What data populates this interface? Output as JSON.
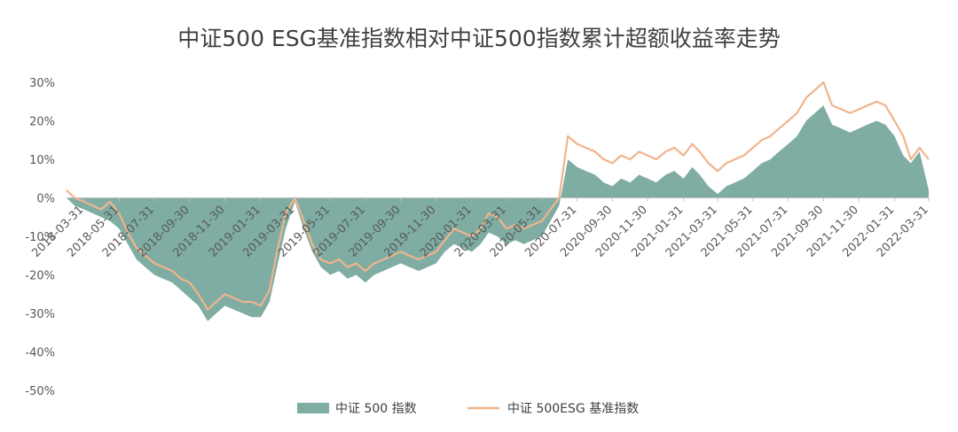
{
  "chart_data": {
    "type": "area",
    "title": "中证500 ESG基准指数相对中证500指数累计超额收益率走势",
    "xlabel": "",
    "ylabel": "",
    "ylim": [
      -50,
      30
    ],
    "y_ticks": [
      "30%",
      "20%",
      "10%",
      "0%",
      "-10%",
      "-20%",
      "-30%",
      "-40%",
      "-50%"
    ],
    "x_ticks": [
      "2018-03-31",
      "2018-05-31",
      "2018-07-31",
      "2018-09-30",
      "2018-11-30",
      "2019-01-31",
      "2019-03-31",
      "2019-05-31",
      "2019-07-31",
      "2019-09-30",
      "2019-11-30",
      "2020-01-31",
      "2020-03-31",
      "2020-05-31",
      "2020-07-31",
      "2020-09-30",
      "2020-11-30",
      "2021-01-31",
      "2021-03-31",
      "2021-05-31",
      "2021-07-31",
      "2021-09-30",
      "2021-11-30",
      "2022-01-31",
      "2022-03-31"
    ],
    "legend_position": "bottom",
    "grid": false,
    "series": [
      {
        "name": "中证 500 指数",
        "kind": "area",
        "color": "#7fada3",
        "x": [
          "2018-03-01",
          "2018-03-15",
          "2018-03-31",
          "2018-04-15",
          "2018-04-30",
          "2018-05-15",
          "2018-05-31",
          "2018-06-15",
          "2018-06-30",
          "2018-07-15",
          "2018-07-31",
          "2018-08-15",
          "2018-08-31",
          "2018-09-15",
          "2018-09-30",
          "2018-10-15",
          "2018-10-31",
          "2018-11-15",
          "2018-11-30",
          "2018-12-15",
          "2018-12-31",
          "2019-01-15",
          "2019-01-31",
          "2019-02-15",
          "2019-02-28",
          "2019-03-15",
          "2019-03-31",
          "2019-04-15",
          "2019-04-30",
          "2019-05-15",
          "2019-05-31",
          "2019-06-15",
          "2019-06-30",
          "2019-07-15",
          "2019-07-31",
          "2019-08-15",
          "2019-08-31",
          "2019-09-15",
          "2019-09-30",
          "2019-10-15",
          "2019-10-31",
          "2019-11-15",
          "2019-11-30",
          "2019-12-15",
          "2019-12-31",
          "2020-01-15",
          "2020-01-31",
          "2020-02-15",
          "2020-02-29",
          "2020-03-15",
          "2020-03-31",
          "2020-04-15",
          "2020-04-30",
          "2020-05-15",
          "2020-05-31",
          "2020-06-15",
          "2020-06-30",
          "2020-07-15",
          "2020-07-31",
          "2020-08-15",
          "2020-08-31",
          "2020-09-15",
          "2020-09-30",
          "2020-10-15",
          "2020-10-31",
          "2020-11-15",
          "2020-11-30",
          "2020-12-15",
          "2020-12-31",
          "2021-01-15",
          "2021-01-31",
          "2021-02-15",
          "2021-02-28",
          "2021-03-15",
          "2021-03-31",
          "2021-04-15",
          "2021-04-30",
          "2021-05-15",
          "2021-05-31",
          "2021-06-15",
          "2021-06-30",
          "2021-07-15",
          "2021-07-31",
          "2021-08-15",
          "2021-08-31",
          "2021-09-15",
          "2021-09-30",
          "2021-10-15",
          "2021-10-31",
          "2021-11-15",
          "2021-11-30",
          "2021-12-15",
          "2021-12-31",
          "2022-01-15",
          "2022-01-31",
          "2022-02-15",
          "2022-02-28",
          "2022-03-15",
          "2022-03-31"
        ],
        "values": [
          0,
          -2,
          -3,
          -4,
          -5,
          -6,
          -8,
          -12,
          -16,
          -18,
          -20,
          -21,
          -22,
          -24,
          -26,
          -28,
          -32,
          -30,
          -28,
          -29,
          -30,
          -31,
          -31,
          -27,
          -18,
          -8,
          -1,
          -8,
          -14,
          -18,
          -20,
          -19,
          -21,
          -20,
          -22,
          -20,
          -19,
          -18,
          -17,
          -18,
          -19,
          -18,
          -17,
          -14,
          -12,
          -13,
          -14,
          -12,
          -9,
          -10,
          -12,
          -11,
          -12,
          -11,
          -10,
          -6,
          -2,
          10,
          8,
          7,
          6,
          4,
          3,
          5,
          4,
          6,
          5,
          4,
          6,
          7,
          5,
          8,
          6,
          3,
          1,
          3,
          4,
          5,
          7,
          9,
          10,
          12,
          14,
          16,
          20,
          22,
          24,
          19,
          18,
          17,
          18,
          19,
          20,
          19,
          16,
          11,
          9,
          12,
          2
        ]
      },
      {
        "name": "中证 500ESG 基准指数",
        "kind": "line",
        "color": "#f0b48c",
        "x": [
          "2018-03-01",
          "2018-03-15",
          "2018-03-31",
          "2018-04-15",
          "2018-04-30",
          "2018-05-15",
          "2018-05-31",
          "2018-06-15",
          "2018-06-30",
          "2018-07-15",
          "2018-07-31",
          "2018-08-15",
          "2018-08-31",
          "2018-09-15",
          "2018-09-30",
          "2018-10-15",
          "2018-10-31",
          "2018-11-15",
          "2018-11-30",
          "2018-12-15",
          "2018-12-31",
          "2019-01-15",
          "2019-01-31",
          "2019-02-15",
          "2019-02-28",
          "2019-03-15",
          "2019-03-31",
          "2019-04-15",
          "2019-04-30",
          "2019-05-15",
          "2019-05-31",
          "2019-06-15",
          "2019-06-30",
          "2019-07-15",
          "2019-07-31",
          "2019-08-15",
          "2019-08-31",
          "2019-09-15",
          "2019-09-30",
          "2019-10-15",
          "2019-10-31",
          "2019-11-15",
          "2019-11-30",
          "2019-12-15",
          "2019-12-31",
          "2020-01-15",
          "2020-01-31",
          "2020-02-15",
          "2020-02-29",
          "2020-03-15",
          "2020-03-31",
          "2020-04-15",
          "2020-04-30",
          "2020-05-15",
          "2020-05-31",
          "2020-06-15",
          "2020-06-30",
          "2020-07-15",
          "2020-07-31",
          "2020-08-15",
          "2020-08-31",
          "2020-09-15",
          "2020-09-30",
          "2020-10-15",
          "2020-10-31",
          "2020-11-15",
          "2020-11-30",
          "2020-12-15",
          "2020-12-31",
          "2021-01-15",
          "2021-01-31",
          "2021-02-15",
          "2021-02-28",
          "2021-03-15",
          "2021-03-31",
          "2021-04-15",
          "2021-04-30",
          "2021-05-15",
          "2021-05-31",
          "2021-06-15",
          "2021-06-30",
          "2021-07-15",
          "2021-07-31",
          "2021-08-15",
          "2021-08-31",
          "2021-09-15",
          "2021-09-30",
          "2021-10-15",
          "2021-10-31",
          "2021-11-15",
          "2021-11-30",
          "2021-12-15",
          "2021-12-31",
          "2022-01-15",
          "2022-01-31",
          "2022-02-15",
          "2022-02-28",
          "2022-03-15",
          "2022-03-31"
        ],
        "values": [
          2,
          0,
          -1,
          -2,
          -3,
          -1,
          -4,
          -9,
          -13,
          -15,
          -17,
          -18,
          -19,
          -21,
          -22,
          -25,
          -29,
          -27,
          -25,
          -26,
          -27,
          -27,
          -28,
          -24,
          -14,
          -4,
          0,
          -6,
          -12,
          -16,
          -17,
          -16,
          -18,
          -17,
          -19,
          -17,
          -16,
          -15,
          -14,
          -15,
          -16,
          -15,
          -14,
          -11,
          -8,
          -9,
          -10,
          -8,
          -4,
          -5,
          -8,
          -7,
          -8,
          -7,
          -6,
          -3,
          0,
          16,
          14,
          13,
          12,
          10,
          9,
          11,
          10,
          12,
          11,
          10,
          12,
          13,
          11,
          14,
          12,
          9,
          7,
          9,
          10,
          11,
          13,
          15,
          16,
          18,
          20,
          22,
          26,
          28,
          30,
          24,
          23,
          22,
          23,
          24,
          25,
          24,
          20,
          16,
          10,
          13,
          10
        ]
      }
    ]
  }
}
